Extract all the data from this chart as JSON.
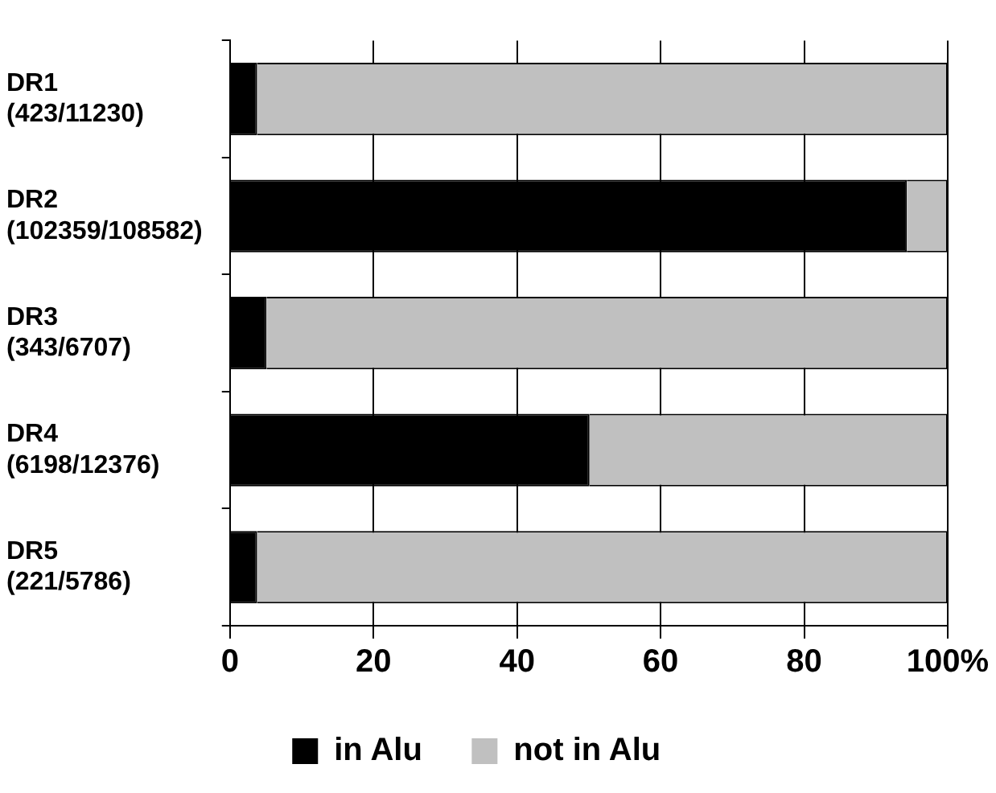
{
  "chart_data": {
    "type": "bar",
    "orientation": "horizontal",
    "stacked": true,
    "categories": [
      "DR1\n(423/11230)",
      "DR2\n(102359/108582)",
      "DR3\n(343/6707)",
      "DR4\n(6198/12376)",
      "DR5\n(221/5786)"
    ],
    "series": [
      {
        "name": "in Alu",
        "color": "#000000",
        "values": [
          3.8,
          94.3,
          5.1,
          50.1,
          3.8
        ]
      },
      {
        "name": "not in Alu",
        "color": "#c0c0c0",
        "values": [
          96.2,
          5.7,
          94.9,
          49.9,
          96.2
        ]
      }
    ],
    "xlim": [
      0,
      100
    ],
    "xticks": [
      0,
      20,
      40,
      60,
      80,
      {
        "value": 100,
        "label": "100%"
      }
    ],
    "grid": "x",
    "legend": "bottom"
  }
}
